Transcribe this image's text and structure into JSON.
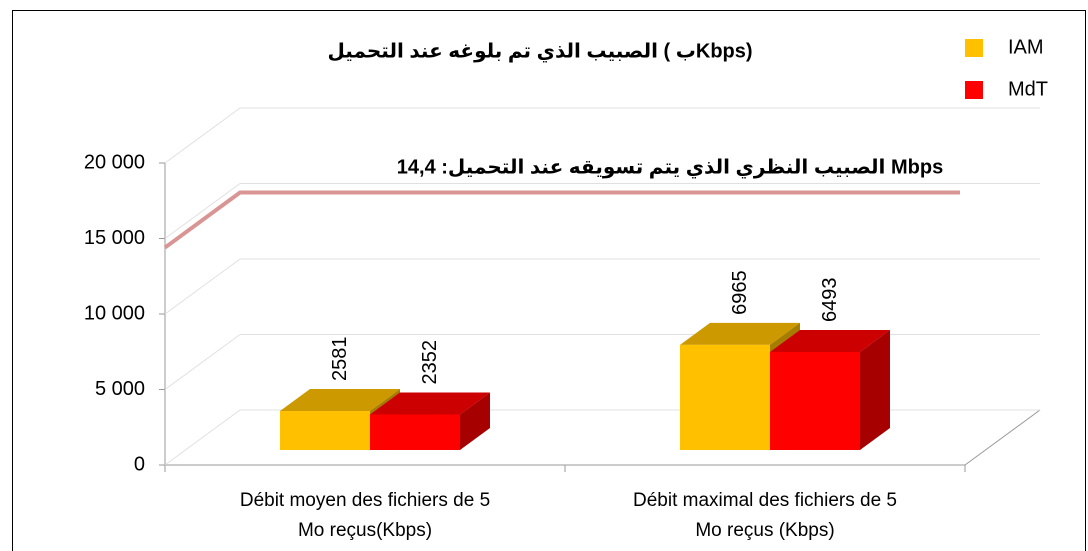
{
  "chart_data": {
    "type": "bar3d",
    "title": "الصبيب الذي تم بلوغه عند التحميل ( بKbps)",
    "annotation": "الصبيب النظري الذي يتم تسويقه عند التحميل: 14,4 Mbps",
    "reference_value": 14400,
    "reference_color": "#d99594",
    "categories": [
      [
        "Débit moyen des fichiers de 5",
        "Mo reçus(Kbps)"
      ],
      [
        "Débit maximal des fichiers de 5",
        "Mo reçus (Kbps)"
      ]
    ],
    "series": [
      {
        "name": "IAM",
        "color": "#ffc000",
        "values": [
          2581,
          6965
        ]
      },
      {
        "name": "MdT",
        "color": "#ff0000",
        "values": [
          2352,
          6493
        ]
      }
    ],
    "ylim": [
      0,
      20000
    ],
    "yticks": [
      0,
      {
        "value": 5000,
        "label": "5 000"
      },
      {
        "value": 10000,
        "label": "10 000"
      },
      {
        "value": 15000,
        "label": "15 000"
      },
      {
        "value": 20000,
        "label": "20 000"
      }
    ],
    "grid": true,
    "legend": "top-right"
  }
}
